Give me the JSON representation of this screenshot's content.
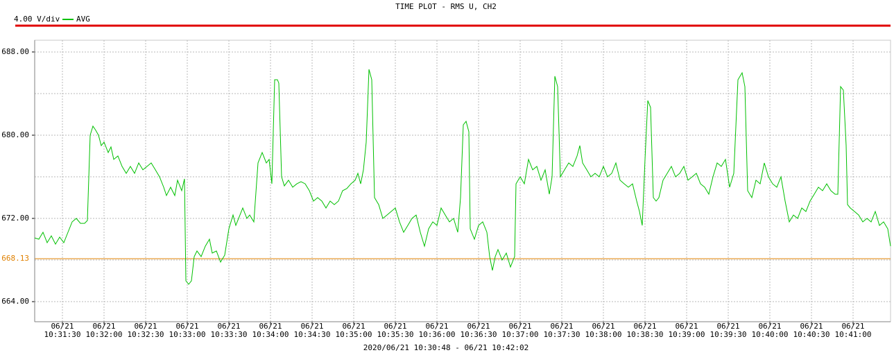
{
  "chart_data": {
    "type": "line",
    "title": "TIME PLOT - RMS  U, CH2",
    "scale_label": "4.00 V/div",
    "footer": "2020/06/21 10:30:48 - 06/21 10:42:02",
    "grid": true,
    "xlim": [
      "10:31:10",
      "10:41:27"
    ],
    "ylim": [
      662.07,
      689.13
    ],
    "yticks": [
      {
        "value": 664,
        "label": "664.00"
      },
      {
        "value": 672,
        "label": "672.00"
      },
      {
        "value": 680,
        "label": "680.00"
      },
      {
        "value": 688,
        "label": "688.00"
      }
    ],
    "yminor": [
      668,
      676,
      684
    ],
    "xticks": [
      {
        "value": "10:31:30",
        "label": [
          "06/21",
          "10:31:30"
        ]
      },
      {
        "value": "10:32:00",
        "label": [
          "06/21",
          "10:32:00"
        ]
      },
      {
        "value": "10:32:30",
        "label": [
          "06/21",
          "10:32:30"
        ]
      },
      {
        "value": "10:33:00",
        "label": [
          "06/21",
          "10:33:00"
        ]
      },
      {
        "value": "10:33:30",
        "label": [
          "06/21",
          "10:33:30"
        ]
      },
      {
        "value": "10:34:00",
        "label": [
          "06/21",
          "10:34:00"
        ]
      },
      {
        "value": "10:34:30",
        "label": [
          "06/21",
          "10:34:30"
        ]
      },
      {
        "value": "10:35:00",
        "label": [
          "06/21",
          "10:35:00"
        ]
      },
      {
        "value": "10:35:30",
        "label": [
          "06/21",
          "10:35:30"
        ]
      },
      {
        "value": "10:36:00",
        "label": [
          "06/21",
          "10:36:00"
        ]
      },
      {
        "value": "10:36:30",
        "label": [
          "06/21",
          "10:36:30"
        ]
      },
      {
        "value": "10:37:00",
        "label": [
          "06/21",
          "10:37:00"
        ]
      },
      {
        "value": "10:37:30",
        "label": [
          "06/21",
          "10:37:30"
        ]
      },
      {
        "value": "10:38:00",
        "label": [
          "06/21",
          "10:38:00"
        ]
      },
      {
        "value": "10:38:30",
        "label": [
          "06/21",
          "10:38:30"
        ]
      },
      {
        "value": "10:39:00",
        "label": [
          "06/21",
          "10:39:00"
        ]
      },
      {
        "value": "10:39:30",
        "label": [
          "06/21",
          "10:39:30"
        ]
      },
      {
        "value": "10:40:00",
        "label": [
          "06/21",
          "10:40:00"
        ]
      },
      {
        "value": "10:40:30",
        "label": [
          "06/21",
          "10:40:30"
        ]
      },
      {
        "value": "10:41:00",
        "label": [
          "06/21",
          "10:41:00"
        ]
      }
    ],
    "reference_line": {
      "value": 668.13,
      "color": "#e08000"
    },
    "x": [
      "10:31:10",
      "10:31:13",
      "10:31:16",
      "10:31:19",
      "10:31:22",
      "10:31:25",
      "10:31:28",
      "10:31:31",
      "10:31:34",
      "10:31:37",
      "10:31:40",
      "10:31:43",
      "10:31:46",
      "10:31:48",
      "10:31:50",
      "10:31:52",
      "10:31:54",
      "10:31:56",
      "10:31:58",
      "10:32:00",
      "10:32:03",
      "10:32:05",
      "10:32:07",
      "10:32:10",
      "10:32:13",
      "10:32:16",
      "10:32:19",
      "10:32:22",
      "10:32:25",
      "10:32:28",
      "10:32:31",
      "10:32:34",
      "10:32:37",
      "10:32:40",
      "10:32:43",
      "10:32:45",
      "10:32:48",
      "10:32:51",
      "10:32:53",
      "10:32:56",
      "10:32:58",
      "10:32:59",
      "10:33:01",
      "10:33:03",
      "10:33:05",
      "10:33:07",
      "10:33:10",
      "10:33:13",
      "10:33:16",
      "10:33:18",
      "10:33:21",
      "10:33:24",
      "10:33:27",
      "10:33:30",
      "10:33:33",
      "10:33:35",
      "10:33:38",
      "10:33:40",
      "10:33:43",
      "10:33:45",
      "10:33:48",
      "10:33:51",
      "10:33:54",
      "10:33:57",
      "10:33:59",
      "10:34:01",
      "10:34:03",
      "10:34:05",
      "10:34:06",
      "10:34:08",
      "10:34:10",
      "10:34:13",
      "10:34:16",
      "10:34:19",
      "10:34:22",
      "10:34:25",
      "10:34:28",
      "10:34:31",
      "10:34:34",
      "10:34:37",
      "10:34:40",
      "10:34:43",
      "10:34:46",
      "10:34:49",
      "10:34:52",
      "10:34:55",
      "10:34:58",
      "10:35:01",
      "10:35:03",
      "10:35:05",
      "10:35:07",
      "10:35:09",
      "10:35:11",
      "10:35:13",
      "10:35:15",
      "10:35:18",
      "10:35:21",
      "10:35:24",
      "10:35:27",
      "10:35:30",
      "10:35:33",
      "10:35:36",
      "10:35:39",
      "10:35:42",
      "10:35:45",
      "10:35:48",
      "10:35:51",
      "10:35:54",
      "10:35:57",
      "10:36:00",
      "10:36:03",
      "10:36:06",
      "10:36:09",
      "10:36:12",
      "10:36:15",
      "10:36:17",
      "10:36:19",
      "10:36:21",
      "10:36:23",
      "10:36:24",
      "10:36:27",
      "10:36:30",
      "10:36:33",
      "10:36:36",
      "10:36:38",
      "10:36:40",
      "10:36:42",
      "10:36:44",
      "10:36:47",
      "10:36:50",
      "10:36:53",
      "10:36:55",
      "10:36:56",
      "10:36:57",
      "10:37:00",
      "10:37:03",
      "10:37:06",
      "10:37:09",
      "10:37:12",
      "10:37:15",
      "10:37:18",
      "10:37:21",
      "10:37:23",
      "10:37:25",
      "10:37:27",
      "10:37:29",
      "10:37:32",
      "10:37:35",
      "10:37:38",
      "10:37:41",
      "10:37:43",
      "10:37:45",
      "10:37:48",
      "10:37:51",
      "10:37:54",
      "10:37:57",
      "10:38:00",
      "10:38:03",
      "10:38:06",
      "10:38:09",
      "10:38:12",
      "10:38:15",
      "10:38:18",
      "10:38:21",
      "10:38:24",
      "10:38:26",
      "10:38:28",
      "10:38:30",
      "10:38:32",
      "10:38:34",
      "10:38:36",
      "10:38:38",
      "10:38:40",
      "10:38:43",
      "10:38:46",
      "10:38:49",
      "10:38:52",
      "10:38:55",
      "10:38:58",
      "10:39:01",
      "10:39:04",
      "10:39:07",
      "10:39:10",
      "10:39:13",
      "10:39:16",
      "10:39:19",
      "10:39:22",
      "10:39:25",
      "10:39:28",
      "10:39:31",
      "10:39:34",
      "10:39:37",
      "10:39:40",
      "10:39:42",
      "10:39:44",
      "10:39:47",
      "10:39:50",
      "10:39:53",
      "10:39:56",
      "10:39:59",
      "10:40:02",
      "10:40:05",
      "10:40:08",
      "10:40:11",
      "10:40:14",
      "10:40:17",
      "10:40:20",
      "10:40:23",
      "10:40:26",
      "10:40:29",
      "10:40:32",
      "10:40:35",
      "10:40:38",
      "10:40:41",
      "10:40:44",
      "10:40:47",
      "10:40:49",
      "10:40:51",
      "10:40:53",
      "10:40:55",
      "10:40:56",
      "10:40:58",
      "10:41:01",
      "10:41:04",
      "10:41:07",
      "10:41:10",
      "10:41:13",
      "10:41:16",
      "10:41:19",
      "10:41:22",
      "10:41:25",
      "10:41:27"
    ],
    "series": [
      {
        "name": "AVG",
        "color": "#00c000",
        "values": [
          670.13,
          670,
          670.67,
          669.67,
          670.33,
          669.53,
          670.2,
          669.67,
          670.67,
          671.67,
          672,
          671.53,
          671.53,
          671.8,
          680,
          680.87,
          680.47,
          680,
          679,
          679.33,
          678.33,
          678.87,
          677.67,
          678,
          677,
          676.33,
          677,
          676.33,
          677.33,
          676.67,
          677,
          677.33,
          676.67,
          676,
          675,
          674.2,
          675,
          674.2,
          675.67,
          674.67,
          675.8,
          666,
          665.67,
          666,
          668.33,
          668.87,
          668.33,
          669.33,
          670,
          668.67,
          668.87,
          667.8,
          668.47,
          671,
          672.33,
          671.33,
          672.33,
          673,
          672,
          672.33,
          671.67,
          677.33,
          678.33,
          677.33,
          677.67,
          675.33,
          685.33,
          685.33,
          685,
          676,
          675.13,
          675.67,
          675,
          675.33,
          675.53,
          675.33,
          674.67,
          673.67,
          674,
          673.67,
          673,
          673.67,
          673.33,
          673.67,
          674.67,
          674.87,
          675.33,
          675.67,
          676.33,
          675.33,
          676.67,
          679.33,
          686.33,
          685.33,
          674,
          673.33,
          672,
          672.33,
          672.67,
          673,
          671.67,
          670.67,
          671.33,
          672,
          672.33,
          670.67,
          669.33,
          671,
          671.67,
          671.33,
          673,
          672.33,
          671.67,
          672,
          670.67,
          674,
          681,
          681.33,
          680.33,
          671,
          670,
          671.33,
          671.67,
          670.67,
          668.33,
          667,
          668.33,
          669,
          668,
          668.67,
          667.33,
          668,
          668.33,
          675.33,
          676,
          675.33,
          677.67,
          676.67,
          677,
          675.67,
          676.67,
          674.33,
          676,
          685.67,
          684.67,
          676,
          676.67,
          677.33,
          677,
          678,
          679,
          677.33,
          676.67,
          676,
          676.33,
          676,
          677,
          676,
          676.33,
          677.33,
          675.67,
          675.33,
          675,
          675.33,
          673.67,
          672.67,
          671.33,
          677.67,
          683.33,
          682.67,
          674,
          673.67,
          674,
          675.67,
          676.33,
          677,
          676,
          676.33,
          677,
          675.67,
          676,
          676.33,
          675.33,
          675,
          674.33,
          676,
          677.33,
          677,
          677.67,
          675,
          676.33,
          685.33,
          686,
          684.67,
          674.67,
          674,
          675.67,
          675.33,
          677.33,
          676,
          675.33,
          675,
          676,
          673.67,
          671.67,
          672.33,
          672,
          673,
          672.67,
          673.67,
          674.33,
          675,
          674.67,
          675.33,
          674.67,
          674.33,
          674.33,
          684.67,
          684.33,
          679,
          673.33,
          673,
          672.67,
          672.33,
          671.67,
          672,
          671.67,
          672.67,
          671.33,
          671.67,
          671,
          669.33
        ]
      }
    ]
  }
}
